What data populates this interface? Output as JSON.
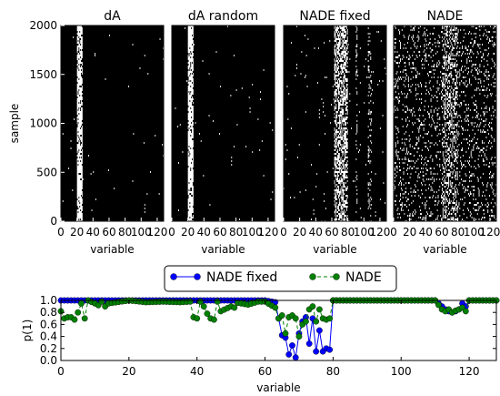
{
  "chart_data": [
    {
      "type": "heatmap",
      "subplots": [
        {
          "title": "dA",
          "columns": [
            {
              "from": 20,
              "to": 27,
              "fill": 0.85
            }
          ],
          "noise": 0.003
        },
        {
          "title": "dA random",
          "columns": [
            {
              "from": 20,
              "to": 27,
              "fill": 0.85
            }
          ],
          "noise": 0.004
        },
        {
          "title": "NADE fixed",
          "columns": [
            {
              "from": 63,
              "to": 80,
              "fill": 0.55
            },
            {
              "from": 90,
              "to": 92,
              "fill": 0.25
            },
            {
              "from": 105,
              "to": 110,
              "fill": 0.18
            }
          ],
          "noise": 0.01
        },
        {
          "title": "NADE",
          "columns": [
            {
              "from": 0,
              "to": 128,
              "fill": 0.12
            },
            {
              "from": 60,
              "to": 80,
              "fill": 0.35
            }
          ],
          "noise": 0.02
        }
      ],
      "xlabel": "variable",
      "ylabel": "sample",
      "xlim": [
        0,
        128
      ],
      "ylim": [
        0,
        2000
      ],
      "xticks": [
        0,
        20,
        40,
        60,
        80,
        100,
        120
      ],
      "yticks": [
        0,
        500,
        1000,
        1500,
        2000
      ],
      "colormap": {
        "zero": "#000000",
        "one": "#ffffff"
      }
    },
    {
      "type": "line",
      "xlabel": "variable",
      "ylabel": "p(1)",
      "xlim": [
        0,
        128
      ],
      "ylim": [
        0.0,
        1.0
      ],
      "xticks": [
        0,
        20,
        40,
        60,
        80,
        100,
        120
      ],
      "yticks": [
        0.0,
        0.2,
        0.4,
        0.6,
        0.8,
        1.0
      ],
      "yticklabels": [
        "0.0",
        "0.2",
        "0.4",
        "0.6",
        "0.8",
        "1.0"
      ],
      "legend_position": "top-center, above axes",
      "series": [
        {
          "name": "NADE fixed",
          "color": "#0000ff",
          "linestyle": "solid",
          "points": [
            [
              0,
              1
            ],
            [
              10,
              1
            ],
            [
              20,
              1
            ],
            [
              30,
              1
            ],
            [
              40,
              1
            ],
            [
              50,
              1
            ],
            [
              60,
              1
            ],
            [
              63,
              0.97
            ],
            [
              64,
              0.7
            ],
            [
              65,
              0.42
            ],
            [
              66,
              0.38
            ],
            [
              67,
              0.1
            ],
            [
              68,
              0.25
            ],
            [
              69,
              0.05
            ],
            [
              70,
              0.45
            ],
            [
              71,
              0.65
            ],
            [
              72,
              0.72
            ],
            [
              73,
              0.28
            ],
            [
              74,
              0.7
            ],
            [
              75,
              0.15
            ],
            [
              76,
              0.5
            ],
            [
              77,
              0.15
            ],
            [
              78,
              0.2
            ],
            [
              79,
              0.18
            ],
            [
              80,
              1
            ],
            [
              90,
              1
            ],
            [
              100,
              1
            ],
            [
              110,
              1
            ],
            [
              112,
              0.9
            ],
            [
              113,
              0.85
            ],
            [
              114,
              0.82
            ],
            [
              115,
              0.8
            ],
            [
              116,
              0.82
            ],
            [
              117,
              0.85
            ],
            [
              118,
              0.95
            ],
            [
              119,
              0.9
            ],
            [
              120,
              1
            ],
            [
              128,
              1
            ]
          ]
        },
        {
          "name": "NADE",
          "color": "#008000",
          "linestyle": "dashed",
          "points": [
            [
              0,
              0.82
            ],
            [
              1,
              0.7
            ],
            [
              2,
              0.72
            ],
            [
              3,
              0.72
            ],
            [
              4,
              0.68
            ],
            [
              5,
              0.8
            ],
            [
              6,
              0.95
            ],
            [
              7,
              0.7
            ],
            [
              8,
              1
            ],
            [
              10,
              0.95
            ],
            [
              11,
              0.92
            ],
            [
              12,
              0.98
            ],
            [
              13,
              0.9
            ],
            [
              14,
              0.95
            ],
            [
              20,
              1
            ],
            [
              25,
              0.97
            ],
            [
              30,
              0.98
            ],
            [
              35,
              0.97
            ],
            [
              38,
              0.98
            ],
            [
              39,
              0.72
            ],
            [
              40,
              0.7
            ],
            [
              41,
              0.98
            ],
            [
              42,
              0.9
            ],
            [
              43,
              0.78
            ],
            [
              44,
              0.7
            ],
            [
              45,
              0.68
            ],
            [
              46,
              0.98
            ],
            [
              47,
              0.82
            ],
            [
              50,
              0.9
            ],
            [
              51,
              0.88
            ],
            [
              52,
              0.96
            ],
            [
              55,
              0.93
            ],
            [
              58,
              0.98
            ],
            [
              60,
              0.98
            ],
            [
              63,
              0.88
            ],
            [
              64,
              0.7
            ],
            [
              65,
              0.75
            ],
            [
              66,
              0.45
            ],
            [
              67,
              0.72
            ],
            [
              68,
              0.75
            ],
            [
              69,
              0.7
            ],
            [
              70,
              0.4
            ],
            [
              71,
              0.6
            ],
            [
              72,
              0.65
            ],
            [
              73,
              0.85
            ],
            [
              74,
              0.9
            ],
            [
              75,
              0.65
            ],
            [
              76,
              0.85
            ],
            [
              77,
              0.7
            ],
            [
              78,
              0.68
            ],
            [
              79,
              0.7
            ],
            [
              80,
              1
            ],
            [
              90,
              1
            ],
            [
              100,
              1
            ],
            [
              110,
              1
            ],
            [
              112,
              0.85
            ],
            [
              113,
              0.82
            ],
            [
              114,
              0.85
            ],
            [
              115,
              0.8
            ],
            [
              116,
              0.83
            ],
            [
              117,
              0.85
            ],
            [
              118,
              0.88
            ],
            [
              119,
              0.82
            ],
            [
              120,
              1
            ],
            [
              128,
              1
            ]
          ]
        }
      ]
    }
  ]
}
